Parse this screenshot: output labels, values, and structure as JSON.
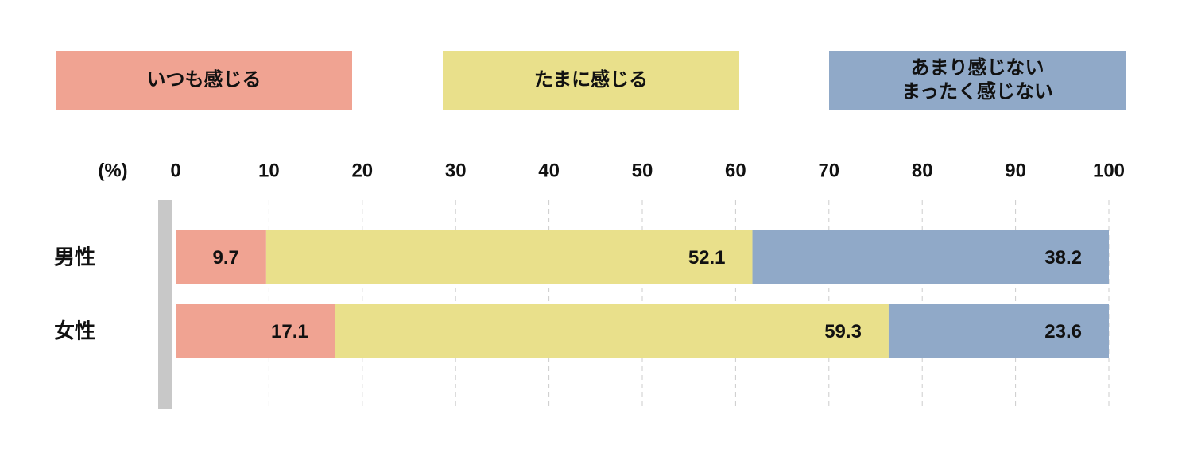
{
  "chart_data": {
    "type": "stacked-bar",
    "x_label": "(%)",
    "categories": [
      "男性",
      "女性"
    ],
    "series": [
      {
        "name": "いつも感じる",
        "color": "#f0a392",
        "values": [
          9.7,
          17.1
        ]
      },
      {
        "name": "たまに感じる",
        "color": "#e9e08b",
        "values": [
          52.1,
          59.3
        ]
      },
      {
        "name": "あまり感じない\nまったく感じない",
        "color": "#90a9c8",
        "values": [
          38.2,
          23.6
        ]
      }
    ],
    "xlim": [
      0,
      100
    ],
    "xticks": [
      0,
      10,
      20,
      30,
      40,
      50,
      60,
      70,
      80,
      90,
      100
    ],
    "grid": true
  }
}
